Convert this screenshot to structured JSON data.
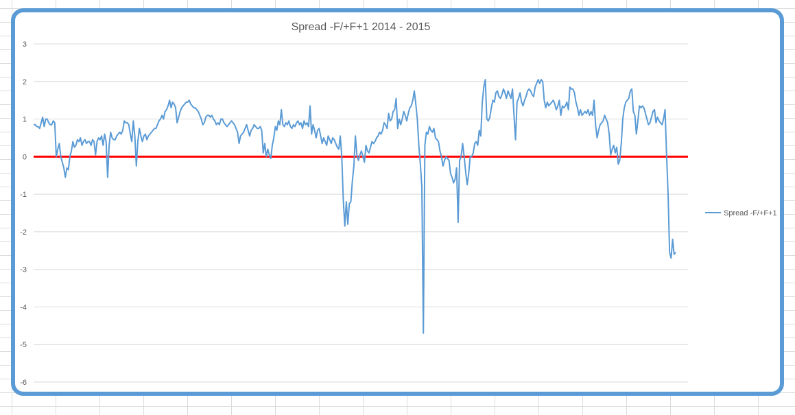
{
  "chart_data": {
    "type": "line",
    "title": "Spread -F/+F+1 2014 - 2015",
    "xlabel": "",
    "ylabel": "",
    "ylim": [
      -6,
      3
    ],
    "yticks": [
      "3",
      "2",
      "1",
      "0",
      "-1",
      "-2",
      "-3",
      "-4",
      "-5",
      "-6"
    ],
    "grid": true,
    "legend_position": "right",
    "reference_line": {
      "y": 0,
      "color": "#ff0000"
    },
    "series": [
      {
        "name": "Spread -F/+F+1",
        "color": "#5b9bd5",
        "values": [
          0.85,
          0.85,
          0.8,
          0.8,
          0.75,
          0.9,
          1.05,
          0.8,
          1.0,
          1.0,
          0.9,
          0.85,
          0.85,
          0.95,
          0.9,
          0.0,
          0.2,
          0.35,
          0.0,
          -0.15,
          -0.3,
          -0.55,
          -0.3,
          -0.35,
          0.0,
          0.15,
          0.4,
          0.25,
          0.3,
          0.45,
          0.4,
          0.5,
          0.3,
          0.4,
          0.45,
          0.35,
          0.4,
          0.4,
          0.3,
          0.45,
          0.4,
          0.05,
          0.4,
          0.5,
          0.45,
          0.55,
          0.3,
          0.6,
          0.4,
          -0.55,
          0.3,
          0.65,
          0.5,
          0.45,
          0.45,
          0.55,
          0.6,
          0.65,
          0.6,
          0.7,
          0.95,
          0.9,
          0.9,
          0.85,
          0.6,
          0.4,
          0.95,
          0.55,
          -0.25,
          0.4,
          0.75,
          0.55,
          0.4,
          0.55,
          0.6,
          0.45,
          0.55,
          0.6,
          0.65,
          0.7,
          0.75,
          0.75,
          0.85,
          0.95,
          1.0,
          1.1,
          1.0,
          1.2,
          1.25,
          1.35,
          1.5,
          1.3,
          1.45,
          1.4,
          1.3,
          0.9,
          1.05,
          1.2,
          1.3,
          1.35,
          1.4,
          1.45,
          1.45,
          1.5,
          1.4,
          1.35,
          1.3,
          1.3,
          1.25,
          1.2,
          1.1,
          1.0,
          0.85,
          0.9,
          1.05,
          1.1,
          1.1,
          1.05,
          1.1,
          1.0,
          0.95,
          0.85,
          0.9,
          0.85,
          1.0,
          1.0,
          0.9,
          0.85,
          0.8,
          0.85,
          0.9,
          0.95,
          0.9,
          0.85,
          0.75,
          0.65,
          0.35,
          0.55,
          0.6,
          0.65,
          0.75,
          0.85,
          0.7,
          0.55,
          0.7,
          0.75,
          0.85,
          0.8,
          0.75,
          0.75,
          0.8,
          0.7,
          0.1,
          0.35,
          0.0,
          0.2,
          0.05,
          -0.05,
          0.3,
          0.5,
          0.8,
          0.7,
          0.95,
          0.85,
          1.25,
          0.85,
          0.8,
          0.9,
          0.85,
          0.95,
          0.8,
          0.75,
          0.85,
          0.8,
          0.9,
          0.95,
          0.85,
          0.9,
          0.75,
          0.95,
          0.85,
          0.9,
          0.8,
          1.35,
          0.6,
          0.85,
          0.7,
          0.5,
          0.7,
          0.75,
          0.55,
          0.35,
          0.5,
          0.4,
          0.3,
          0.55,
          0.45,
          0.35,
          0.5,
          0.45,
          0.35,
          0.25,
          0.2,
          0.55,
          0.0,
          -1.15,
          -1.85,
          -1.2,
          -1.8,
          -1.25,
          -1.2,
          -0.65,
          -0.25,
          0.55,
          0.05,
          -0.1,
          0.05,
          0.15,
          0.0,
          -0.15,
          0.3,
          0.15,
          0.1,
          0.25,
          0.4,
          0.35,
          0.4,
          0.5,
          0.55,
          0.65,
          0.6,
          0.7,
          0.9,
          0.85,
          0.75,
          1.15,
          0.95,
          1.0,
          1.2,
          1.25,
          1.55,
          0.75,
          1.0,
          0.85,
          1.0,
          1.2,
          1.1,
          0.95,
          1.15,
          1.3,
          1.35,
          1.5,
          1.75,
          1.4,
          1.0,
          0.3,
          -0.2,
          -0.8,
          -4.7,
          0.3,
          0.65,
          0.6,
          0.8,
          0.7,
          0.65,
          0.75,
          0.5,
          0.45,
          0.4,
          0.15,
          0.0,
          -0.25,
          -0.1,
          0.0,
          -0.05,
          -0.1,
          -0.45,
          -0.55,
          -0.7,
          -0.6,
          -0.3,
          -1.75,
          -0.1,
          0.0,
          0.35,
          0.0,
          -0.4,
          -0.75,
          -0.45,
          0.0,
          0.0,
          0.1,
          0.35,
          0.4,
          0.3,
          0.7,
          0.55,
          1.45,
          1.85,
          2.05,
          1.0,
          0.95,
          1.05,
          1.3,
          1.5,
          1.45,
          1.7,
          1.75,
          1.6,
          1.55,
          1.65,
          1.8,
          1.7,
          1.55,
          1.75,
          1.65,
          1.55,
          1.8,
          1.1,
          0.45,
          1.45,
          1.55,
          1.7,
          1.45,
          1.35,
          1.5,
          1.6,
          1.75,
          1.8,
          1.75,
          1.65,
          1.6,
          1.85,
          1.95,
          2.05,
          1.95,
          2.05,
          2.0,
          1.5,
          1.3,
          1.45,
          1.35,
          1.4,
          1.45,
          1.5,
          1.4,
          1.25,
          1.35,
          1.5,
          1.1,
          1.35,
          1.3,
          1.35,
          1.45,
          1.25,
          1.85,
          1.8,
          1.8,
          1.7,
          1.45,
          1.3,
          1.1,
          1.25,
          1.1,
          1.15,
          1.2,
          1.15,
          1.25,
          1.1,
          1.2,
          1.1,
          1.5,
          0.85,
          0.5,
          0.7,
          0.85,
          0.9,
          0.95,
          1.1,
          1.0,
          0.9,
          0.6,
          0.05,
          0.2,
          0.3,
          0.1,
          0.25,
          -0.2,
          -0.1,
          0.35,
          1.0,
          1.3,
          1.45,
          1.5,
          1.55,
          1.75,
          1.8,
          1.2,
          1.1,
          0.6,
          0.95,
          1.35,
          1.3,
          1.35,
          1.3,
          1.15,
          1.0,
          0.85,
          0.9,
          1.05,
          1.2,
          1.25,
          0.9,
          1.05,
          0.95,
          0.9,
          0.85,
          1.0,
          1.25,
          0.05,
          -1.0,
          -2.55,
          -2.7,
          -2.2,
          -2.6,
          -2.55
        ]
      }
    ]
  }
}
